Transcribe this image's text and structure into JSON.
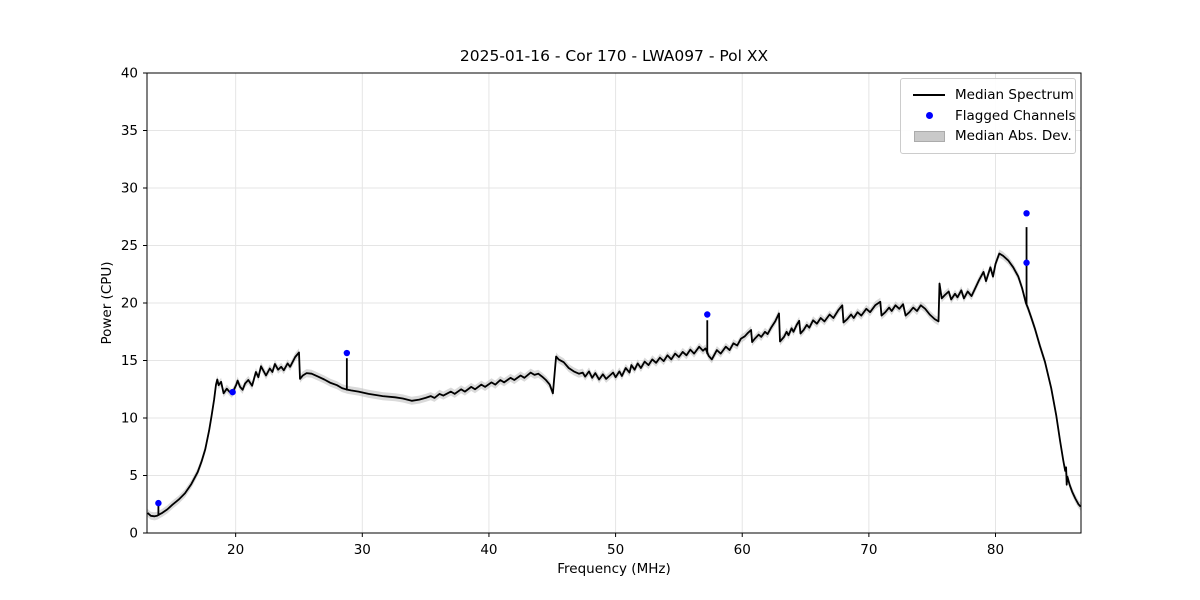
{
  "figure": {
    "title": "2025-01-16 - Cor 170 - LWA097 - Pol XX",
    "xlabel": "Frequency (MHz)",
    "ylabel": "Power (CPU)"
  },
  "legend": {
    "items": [
      {
        "label": "Median Spectrum",
        "type": "line"
      },
      {
        "label": "Flagged Channels",
        "type": "dot"
      },
      {
        "label": "Median Abs. Dev.",
        "type": "patch"
      }
    ]
  },
  "chart_data": {
    "type": "line",
    "title": "2025-01-16 - Cor 170 - LWA097 - Pol XX",
    "xlabel": "Frequency (MHz)",
    "ylabel": "Power (CPU)",
    "xlim": [
      13.0,
      86.75
    ],
    "ylim": [
      0,
      40
    ],
    "xticks": [
      20,
      30,
      40,
      50,
      60,
      70,
      80
    ],
    "yticks": [
      0,
      5,
      10,
      15,
      20,
      25,
      30,
      35,
      40
    ],
    "grid": true,
    "legend_position": "upper right",
    "mad_halfwidth": 0.35,
    "colors": {
      "median": "#000000",
      "flagged": "#0000ff",
      "band": "#bbbbbb",
      "grid": "#e5e5e5",
      "spine": "#000000"
    },
    "series": [
      {
        "name": "Median Spectrum",
        "type": "line",
        "color": "#000000",
        "points": [
          [
            13.05,
            1.75
          ],
          [
            13.3,
            1.5
          ],
          [
            13.6,
            1.45
          ],
          [
            13.8,
            1.5
          ],
          [
            13.95,
            1.6
          ],
          [
            14.2,
            1.75
          ],
          [
            14.6,
            2.05
          ],
          [
            15.0,
            2.45
          ],
          [
            15.5,
            2.9
          ],
          [
            16.0,
            3.45
          ],
          [
            16.5,
            4.25
          ],
          [
            17.0,
            5.3
          ],
          [
            17.3,
            6.2
          ],
          [
            17.6,
            7.3
          ],
          [
            17.9,
            8.9
          ],
          [
            18.1,
            10.2
          ],
          [
            18.3,
            11.6
          ],
          [
            18.45,
            12.9
          ],
          [
            18.55,
            13.35
          ],
          [
            18.65,
            12.85
          ],
          [
            18.85,
            13.15
          ],
          [
            19.05,
            12.15
          ],
          [
            19.3,
            12.55
          ],
          [
            19.5,
            12.3
          ],
          [
            19.7,
            12.1
          ],
          [
            19.9,
            12.55
          ],
          [
            20.05,
            12.9
          ],
          [
            20.15,
            13.25
          ],
          [
            20.35,
            12.7
          ],
          [
            20.55,
            12.45
          ],
          [
            20.75,
            13.0
          ],
          [
            21.0,
            13.3
          ],
          [
            21.3,
            12.8
          ],
          [
            21.6,
            14.0
          ],
          [
            21.8,
            13.55
          ],
          [
            22.0,
            14.5
          ],
          [
            22.4,
            13.7
          ],
          [
            22.7,
            14.3
          ],
          [
            22.9,
            14.0
          ],
          [
            23.1,
            14.7
          ],
          [
            23.35,
            14.2
          ],
          [
            23.6,
            14.45
          ],
          [
            23.8,
            14.15
          ],
          [
            24.1,
            14.75
          ],
          [
            24.3,
            14.45
          ],
          [
            24.7,
            15.3
          ],
          [
            25.0,
            15.7
          ],
          [
            25.08,
            13.4
          ],
          [
            25.3,
            13.7
          ],
          [
            25.6,
            13.9
          ],
          [
            26.0,
            13.85
          ],
          [
            26.5,
            13.6
          ],
          [
            27.0,
            13.35
          ],
          [
            27.5,
            13.05
          ],
          [
            28.0,
            12.85
          ],
          [
            28.4,
            12.6
          ],
          [
            28.85,
            12.45
          ],
          [
            29.1,
            12.4
          ],
          [
            29.7,
            12.3
          ],
          [
            30.5,
            12.1
          ],
          [
            31.6,
            11.9
          ],
          [
            32.6,
            11.8
          ],
          [
            33.2,
            11.7
          ],
          [
            33.9,
            11.5
          ],
          [
            34.5,
            11.6
          ],
          [
            35.0,
            11.75
          ],
          [
            35.4,
            11.9
          ],
          [
            35.7,
            11.75
          ],
          [
            36.1,
            12.1
          ],
          [
            36.4,
            11.95
          ],
          [
            37.0,
            12.3
          ],
          [
            37.3,
            12.1
          ],
          [
            37.8,
            12.5
          ],
          [
            38.1,
            12.3
          ],
          [
            38.6,
            12.7
          ],
          [
            38.9,
            12.5
          ],
          [
            39.4,
            12.9
          ],
          [
            39.7,
            12.7
          ],
          [
            40.2,
            13.1
          ],
          [
            40.5,
            12.9
          ],
          [
            40.9,
            13.3
          ],
          [
            41.2,
            13.1
          ],
          [
            41.7,
            13.5
          ],
          [
            42.0,
            13.3
          ],
          [
            42.5,
            13.7
          ],
          [
            42.8,
            13.5
          ],
          [
            43.3,
            13.95
          ],
          [
            43.6,
            13.75
          ],
          [
            43.9,
            13.85
          ],
          [
            44.2,
            13.6
          ],
          [
            44.5,
            13.3
          ],
          [
            44.8,
            12.9
          ],
          [
            45.05,
            12.15
          ],
          [
            45.3,
            15.35
          ],
          [
            45.5,
            15.1
          ],
          [
            45.9,
            14.85
          ],
          [
            46.3,
            14.35
          ],
          [
            46.7,
            14.05
          ],
          [
            47.1,
            13.85
          ],
          [
            47.4,
            13.95
          ],
          [
            47.6,
            13.6
          ],
          [
            47.9,
            14.05
          ],
          [
            48.15,
            13.5
          ],
          [
            48.4,
            13.9
          ],
          [
            48.7,
            13.35
          ],
          [
            49.0,
            13.8
          ],
          [
            49.25,
            13.4
          ],
          [
            49.5,
            13.65
          ],
          [
            49.8,
            13.95
          ],
          [
            50.0,
            13.55
          ],
          [
            50.3,
            14.05
          ],
          [
            50.5,
            13.65
          ],
          [
            50.8,
            14.35
          ],
          [
            51.1,
            13.95
          ],
          [
            51.25,
            14.6
          ],
          [
            51.5,
            14.2
          ],
          [
            51.75,
            14.75
          ],
          [
            52.0,
            14.35
          ],
          [
            52.3,
            14.9
          ],
          [
            52.6,
            14.6
          ],
          [
            52.9,
            15.1
          ],
          [
            53.2,
            14.8
          ],
          [
            53.5,
            15.25
          ],
          [
            53.8,
            14.95
          ],
          [
            54.1,
            15.45
          ],
          [
            54.4,
            15.1
          ],
          [
            54.7,
            15.6
          ],
          [
            55.0,
            15.3
          ],
          [
            55.3,
            15.75
          ],
          [
            55.6,
            15.45
          ],
          [
            55.9,
            15.95
          ],
          [
            56.2,
            15.6
          ],
          [
            56.6,
            16.2
          ],
          [
            56.9,
            15.85
          ],
          [
            57.1,
            16.05
          ],
          [
            57.35,
            15.4
          ],
          [
            57.6,
            15.1
          ],
          [
            58.0,
            15.9
          ],
          [
            58.3,
            15.6
          ],
          [
            58.7,
            16.2
          ],
          [
            59.0,
            15.9
          ],
          [
            59.3,
            16.5
          ],
          [
            59.6,
            16.3
          ],
          [
            59.9,
            16.9
          ],
          [
            60.2,
            17.1
          ],
          [
            60.45,
            17.4
          ],
          [
            60.7,
            17.65
          ],
          [
            60.78,
            16.6
          ],
          [
            61.0,
            16.9
          ],
          [
            61.3,
            17.25
          ],
          [
            61.5,
            17.05
          ],
          [
            61.8,
            17.5
          ],
          [
            62.0,
            17.3
          ],
          [
            62.3,
            17.9
          ],
          [
            62.6,
            18.4
          ],
          [
            62.9,
            19.1
          ],
          [
            62.98,
            16.65
          ],
          [
            63.3,
            17.05
          ],
          [
            63.5,
            17.5
          ],
          [
            63.65,
            17.2
          ],
          [
            63.9,
            17.8
          ],
          [
            64.05,
            17.5
          ],
          [
            64.3,
            18.1
          ],
          [
            64.5,
            18.45
          ],
          [
            64.6,
            17.35
          ],
          [
            64.85,
            17.65
          ],
          [
            65.1,
            18.1
          ],
          [
            65.3,
            17.85
          ],
          [
            65.6,
            18.5
          ],
          [
            65.9,
            18.2
          ],
          [
            66.2,
            18.7
          ],
          [
            66.5,
            18.4
          ],
          [
            66.9,
            19.0
          ],
          [
            67.2,
            18.7
          ],
          [
            67.6,
            19.4
          ],
          [
            67.9,
            19.8
          ],
          [
            68.0,
            18.3
          ],
          [
            68.3,
            18.6
          ],
          [
            68.6,
            19.0
          ],
          [
            68.8,
            18.7
          ],
          [
            69.1,
            19.2
          ],
          [
            69.4,
            18.9
          ],
          [
            69.8,
            19.5
          ],
          [
            70.1,
            19.2
          ],
          [
            70.5,
            19.8
          ],
          [
            70.9,
            20.1
          ],
          [
            71.0,
            18.9
          ],
          [
            71.3,
            19.2
          ],
          [
            71.6,
            19.6
          ],
          [
            71.8,
            19.3
          ],
          [
            72.1,
            19.8
          ],
          [
            72.4,
            19.5
          ],
          [
            72.7,
            19.9
          ],
          [
            72.9,
            18.9
          ],
          [
            73.2,
            19.2
          ],
          [
            73.5,
            19.6
          ],
          [
            73.8,
            19.3
          ],
          [
            74.1,
            19.8
          ],
          [
            74.45,
            19.5
          ],
          [
            74.8,
            19.0
          ],
          [
            75.2,
            18.6
          ],
          [
            75.5,
            18.4
          ],
          [
            75.58,
            21.7
          ],
          [
            75.75,
            20.4
          ],
          [
            76.0,
            20.7
          ],
          [
            76.3,
            21.0
          ],
          [
            76.5,
            20.3
          ],
          [
            76.8,
            20.8
          ],
          [
            77.0,
            20.5
          ],
          [
            77.3,
            21.1
          ],
          [
            77.5,
            20.4
          ],
          [
            77.8,
            21.0
          ],
          [
            78.1,
            20.6
          ],
          [
            78.4,
            21.3
          ],
          [
            78.7,
            22.0
          ],
          [
            79.05,
            22.7
          ],
          [
            79.25,
            21.9
          ],
          [
            79.6,
            23.1
          ],
          [
            79.8,
            22.3
          ],
          [
            80.0,
            23.4
          ],
          [
            80.3,
            24.3
          ],
          [
            80.6,
            24.1
          ],
          [
            81.0,
            23.7
          ],
          [
            81.4,
            23.1
          ],
          [
            81.8,
            22.3
          ],
          [
            82.1,
            21.3
          ],
          [
            82.4,
            20.0
          ],
          [
            82.55,
            19.6
          ],
          [
            82.8,
            18.8
          ],
          [
            83.1,
            17.8
          ],
          [
            83.5,
            16.3
          ],
          [
            83.9,
            14.9
          ],
          [
            84.4,
            12.6
          ],
          [
            84.8,
            10.2
          ],
          [
            85.1,
            8.0
          ],
          [
            85.35,
            6.3
          ],
          [
            85.5,
            5.4
          ],
          [
            85.57,
            5.7
          ],
          [
            85.62,
            4.2
          ],
          [
            85.68,
            4.9
          ],
          [
            85.85,
            4.2
          ],
          [
            86.05,
            3.6
          ],
          [
            86.3,
            3.0
          ],
          [
            86.55,
            2.5
          ],
          [
            86.72,
            2.3
          ]
        ],
        "spikes": [
          [
            13.9,
            1.5,
            2.45
          ],
          [
            28.78,
            12.4,
            15.2
          ],
          [
            57.24,
            15.55,
            18.5
          ],
          [
            82.45,
            19.9,
            26.6
          ]
        ]
      },
      {
        "name": "Flagged Channels",
        "type": "scatter",
        "color": "#0000ff",
        "points": [
          [
            13.9,
            2.6
          ],
          [
            19.76,
            12.25
          ],
          [
            28.78,
            15.65
          ],
          [
            57.24,
            19.0
          ],
          [
            82.45,
            27.8
          ],
          [
            82.45,
            23.5
          ]
        ]
      },
      {
        "name": "Median Abs. Dev.",
        "type": "band",
        "color": "#bbbbbb"
      }
    ]
  }
}
